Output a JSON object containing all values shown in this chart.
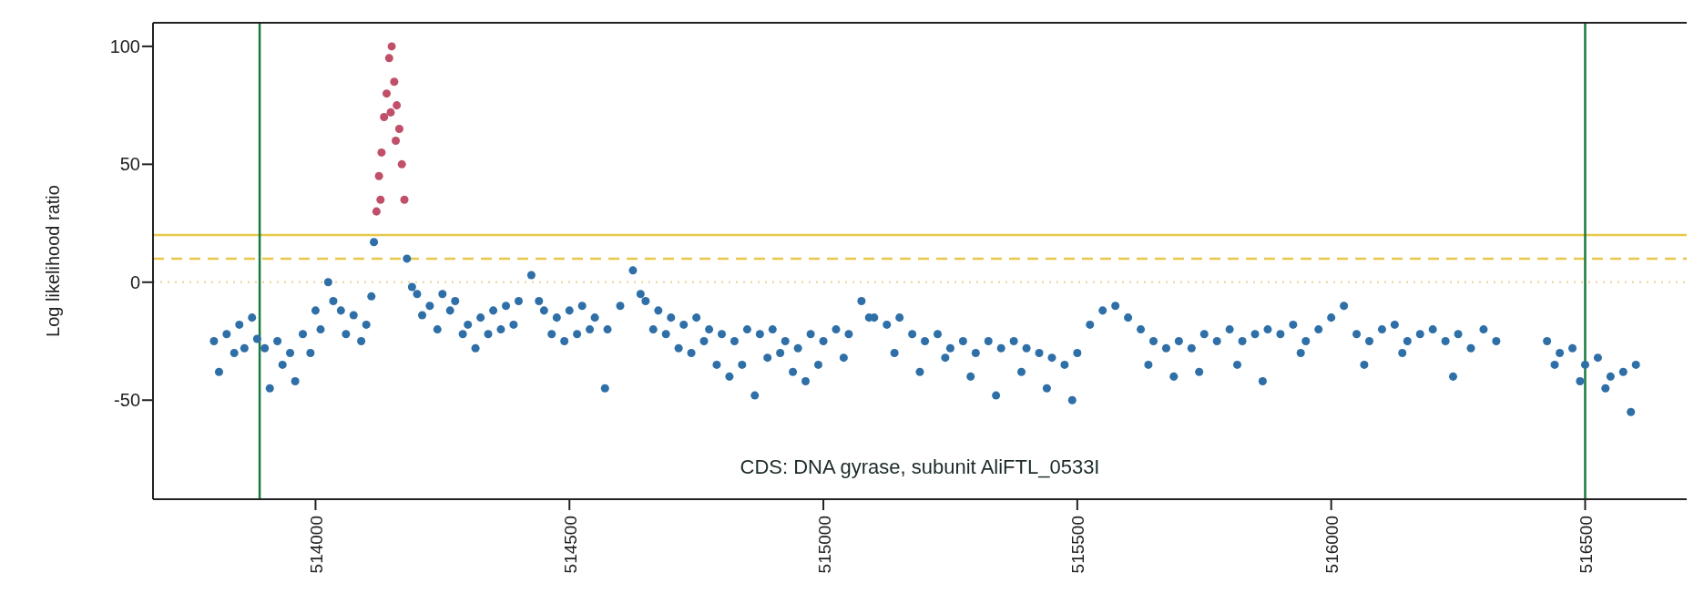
{
  "chart_data": {
    "type": "scatter",
    "ylabel": "Log likelihood ratio",
    "xlim": [
      513680,
      516700
    ],
    "xticks": [
      514000,
      514500,
      515000,
      515500,
      516000,
      516500
    ],
    "ylim": [
      -92,
      110
    ],
    "yticks": [
      -50,
      0,
      50,
      100
    ],
    "marker": "circle",
    "series": [
      {
        "color": "#2f6fa8",
        "x": [
          513800,
          513810,
          513825,
          513840,
          513850,
          513860,
          513875,
          513885,
          513900,
          513910,
          513925,
          513935,
          513950,
          513960,
          513975,
          513990,
          514000,
          514010,
          514025,
          514035,
          514050,
          514060,
          514075,
          514090,
          514100,
          514110,
          514115,
          514180,
          514190,
          514200,
          514210,
          514225,
          514240,
          514250,
          514265,
          514275,
          514290,
          514300,
          514315,
          514325,
          514340,
          514350,
          514365,
          514375,
          514390,
          514400,
          514425,
          514440,
          514450,
          514465,
          514475,
          514490,
          514500,
          514515,
          514525,
          514540,
          514550,
          514570,
          514575,
          514600,
          514625,
          514640,
          514650,
          514665,
          514675,
          514690,
          514700,
          514715,
          514725,
          514740,
          514750,
          514765,
          514775,
          514790,
          514800,
          514815,
          514825,
          514840,
          514850,
          514865,
          514875,
          514890,
          514900,
          514915,
          514925,
          514940,
          514950,
          514965,
          514975,
          514990,
          515000,
          515025,
          515040,
          515050,
          515075,
          515090,
          515100,
          515125,
          515140,
          515150,
          515175,
          515190,
          515200,
          515225,
          515240,
          515250,
          515275,
          515290,
          515300,
          515325,
          515340,
          515350,
          515375,
          515390,
          515400,
          515425,
          515440,
          515450,
          515475,
          515490,
          515500,
          515525,
          515550,
          515575,
          515600,
          515625,
          515640,
          515650,
          515675,
          515690,
          515700,
          515725,
          515740,
          515750,
          515775,
          515800,
          515815,
          515825,
          515850,
          515865,
          515875,
          515900,
          515925,
          515940,
          515950,
          515975,
          516000,
          516025,
          516050,
          516065,
          516075,
          516100,
          516125,
          516140,
          516150,
          516175,
          516200,
          516225,
          516240,
          516250,
          516275,
          516300,
          516325,
          516425,
          516440,
          516450,
          516475,
          516490,
          516500,
          516525,
          516540,
          516550,
          516575,
          516590,
          516600
        ],
        "values": [
          -25,
          -38,
          -22,
          -30,
          -18,
          -28,
          -15,
          -24,
          -28,
          -45,
          -25,
          -35,
          -30,
          -42,
          -22,
          -30,
          -12,
          -20,
          0,
          -8,
          -12,
          -22,
          -14,
          -25,
          -18,
          -6,
          17,
          10,
          -2,
          -5,
          -14,
          -10,
          -20,
          -5,
          -12,
          -8,
          -22,
          -18,
          -28,
          -15,
          -22,
          -12,
          -20,
          -10,
          -18,
          -8,
          3,
          -8,
          -12,
          -22,
          -15,
          -25,
          -12,
          -22,
          -10,
          -20,
          -15,
          -45,
          -20,
          -10,
          5,
          -5,
          -8,
          -20,
          -12,
          -22,
          -15,
          -28,
          -18,
          -30,
          -15,
          -25,
          -20,
          -35,
          -22,
          -40,
          -25,
          -35,
          -20,
          -48,
          -22,
          -32,
          -20,
          -30,
          -25,
          -38,
          -28,
          -42,
          -22,
          -35,
          -25,
          -20,
          -32,
          -22,
          -8,
          -15,
          -15,
          -18,
          -30,
          -15,
          -22,
          -38,
          -25,
          -22,
          -32,
          -28,
          -25,
          -40,
          -30,
          -25,
          -48,
          -28,
          -25,
          -38,
          -28,
          -30,
          -45,
          -32,
          -35,
          -50,
          -30,
          -18,
          -12,
          -10,
          -15,
          -20,
          -35,
          -25,
          -28,
          -40,
          -25,
          -28,
          -38,
          -22,
          -25,
          -20,
          -35,
          -25,
          -22,
          -42,
          -20,
          -22,
          -18,
          -30,
          -25,
          -20,
          -15,
          -10,
          -22,
          -35,
          -25,
          -20,
          -18,
          -30,
          -25,
          -22,
          -20,
          -25,
          -40,
          -22,
          -28,
          -20,
          -25,
          -25,
          -35,
          -30,
          -28,
          -42,
          -35,
          -32,
          -45,
          -40,
          -38,
          -55,
          -35
        ]
      },
      {
        "color": "#c0506a",
        "x": [
          514120,
          514125,
          514128,
          514130,
          514135,
          514140,
          514145,
          514148,
          514150,
          514155,
          514158,
          514160,
          514165,
          514170,
          514175
        ],
        "values": [
          30,
          45,
          35,
          55,
          70,
          80,
          95,
          72,
          100,
          85,
          60,
          75,
          65,
          50,
          35
        ]
      }
    ],
    "ref_lines": [
      {
        "axis": "y",
        "value": 20,
        "color": "#e8c84a",
        "line_style": "solid"
      },
      {
        "axis": "y",
        "value": 10,
        "color": "#e8c84a",
        "line_style": "dashed"
      },
      {
        "axis": "y",
        "value": 0,
        "color": "#f0d9a8",
        "line_style": "dotted"
      },
      {
        "axis": "x",
        "value": 513890,
        "color": "#1a7a3e",
        "line_style": "solid"
      },
      {
        "axis": "x",
        "value": 516500,
        "color": "#1a7a3e",
        "line_style": "solid"
      }
    ],
    "annotations": [
      "CDS: DNA gyrase, subunit AliFTL_0533I"
    ]
  }
}
